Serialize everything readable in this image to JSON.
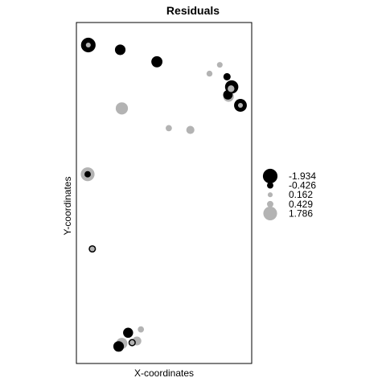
{
  "chart_data": {
    "type": "scatter",
    "title": "Residuals",
    "xlabel": "X-coordinates",
    "ylabel": "Y-coordinates",
    "xlim": [
      0,
      100
    ],
    "ylim": [
      0,
      100
    ],
    "grid": false,
    "legend_position": "right",
    "colors": {
      "negative": "#000000",
      "positive": "#b3b3b3"
    },
    "legend": [
      {
        "label": "-1.934",
        "value": -1.934
      },
      {
        "label": "-0.426",
        "value": -0.426
      },
      {
        "label": "0.162",
        "value": 0.162
      },
      {
        "label": "0.429",
        "value": 0.429
      },
      {
        "label": "1.786",
        "value": 1.786
      }
    ],
    "points": [
      {
        "x": 6.8,
        "y": 93.4,
        "value": -1.934
      },
      {
        "x": 6.8,
        "y": 93.4,
        "value": 0.162
      },
      {
        "x": 25.0,
        "y": 92.0,
        "value": -1.2
      },
      {
        "x": 45.9,
        "y": 88.5,
        "value": -1.3
      },
      {
        "x": 75.9,
        "y": 85.0,
        "value": 0.35
      },
      {
        "x": 81.8,
        "y": 87.6,
        "value": 0.3
      },
      {
        "x": 85.9,
        "y": 84.1,
        "value": -0.6
      },
      {
        "x": 88.6,
        "y": 81.1,
        "value": -1.7
      },
      {
        "x": 88.2,
        "y": 80.6,
        "value": 0.5
      },
      {
        "x": 86.8,
        "y": 78.3,
        "value": 1.2
      },
      {
        "x": 86.4,
        "y": 78.8,
        "value": -1.0
      },
      {
        "x": 93.6,
        "y": 75.7,
        "value": -1.6
      },
      {
        "x": 93.6,
        "y": 75.7,
        "value": 0.162
      },
      {
        "x": 25.9,
        "y": 74.8,
        "value": 1.5
      },
      {
        "x": 52.7,
        "y": 69.0,
        "value": 0.4
      },
      {
        "x": 65.0,
        "y": 68.5,
        "value": 0.75
      },
      {
        "x": 6.4,
        "y": 55.5,
        "value": 1.786
      },
      {
        "x": 6.4,
        "y": 55.5,
        "value": -0.426
      },
      {
        "x": 9.1,
        "y": 33.6,
        "value": -0.6
      },
      {
        "x": 9.1,
        "y": 33.6,
        "value": 0.162
      },
      {
        "x": 36.8,
        "y": 10.0,
        "value": 0.4
      },
      {
        "x": 29.5,
        "y": 9.0,
        "value": -1.1
      },
      {
        "x": 34.5,
        "y": 6.6,
        "value": 0.9
      },
      {
        "x": 25.9,
        "y": 5.9,
        "value": 1.3
      },
      {
        "x": 24.1,
        "y": 5.0,
        "value": -1.2
      },
      {
        "x": 31.8,
        "y": 6.1,
        "value": -0.6
      },
      {
        "x": 31.8,
        "y": 6.1,
        "value": 0.162
      }
    ]
  }
}
